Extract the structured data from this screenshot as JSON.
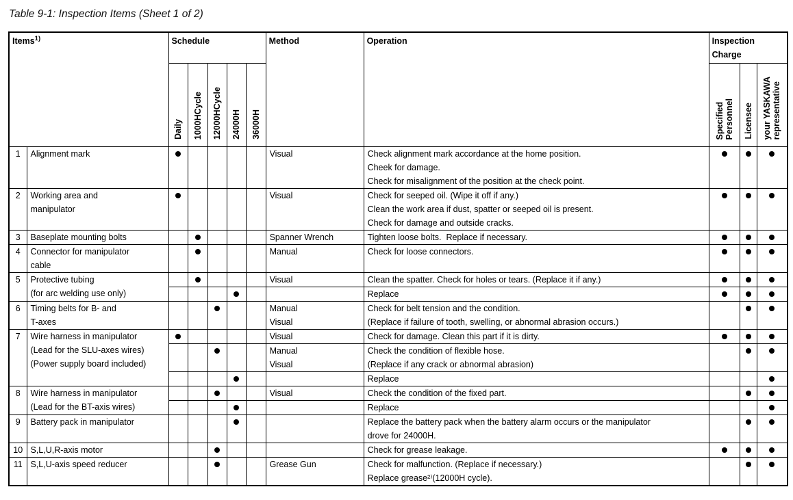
{
  "title": "Table 9-1: Inspection Items (Sheet 1 of 2)",
  "header": {
    "items_label": "Items",
    "items_note": "1)",
    "schedule_label": "Schedule",
    "schedule_cols": [
      "Daily",
      "1000HCycle",
      "12000HCycle",
      "24000H",
      "36000H"
    ],
    "method_label": "Method",
    "operation_label": "Operation",
    "charge_label": "Inspection\nCharge",
    "charge_cols": [
      "Specified\nPersonnel",
      "Licensee",
      "your YASKAWA\nrepresentative"
    ]
  },
  "rows": [
    {
      "num": "1",
      "name": "Alignment mark",
      "subrows": [
        {
          "schedule": "Daily",
          "method": "Visual",
          "operation": "Check alignment mark accordance at the home position.\nCheek for damage.\nCheck for misalignment of the position at the check point.",
          "charges": [
            1,
            1,
            1
          ]
        }
      ]
    },
    {
      "num": "2",
      "name": "Working area and\nmanipulator",
      "subrows": [
        {
          "schedule": "Daily",
          "method": "Visual",
          "operation": "Check for seeped oil. (Wipe it off if any.)\nClean the work area if dust, spatter or seeped oil is present.\nCheck for damage and outside cracks.",
          "charges": [
            1,
            1,
            1
          ]
        }
      ]
    },
    {
      "num": "3",
      "name": "Baseplate mounting bolts",
      "subrows": [
        {
          "schedule": "1000HCycle",
          "method": "Spanner Wrench",
          "operation": "Tighten loose bolts.  Replace if necessary.",
          "charges": [
            1,
            1,
            1
          ]
        }
      ]
    },
    {
      "num": "4",
      "name": "Connector for manipulator\ncable",
      "subrows": [
        {
          "schedule": "1000HCycle",
          "method": "Manual",
          "operation": "Check for loose connectors.",
          "charges": [
            1,
            1,
            1
          ]
        }
      ]
    },
    {
      "num": "5",
      "name": "Protective tubing\n(for arc welding use only)",
      "subrows": [
        {
          "schedule": "1000HCycle",
          "method": "Visual",
          "operation": "Clean the spatter. Check for holes or tears. (Replace it if any.)",
          "charges": [
            1,
            1,
            1
          ]
        },
        {
          "schedule": "24000H",
          "method": "",
          "operation": "Replace",
          "charges": [
            1,
            1,
            1
          ]
        }
      ]
    },
    {
      "num": "6",
      "name": "Timing belts for B- and\nT-axes",
      "subrows": [
        {
          "schedule": "12000HCycle",
          "method": "Manual\nVisual",
          "operation": "Check for belt tension and the condition.\n(Replace if failure of tooth, swelling, or abnormal abrasion occurs.)",
          "charges": [
            0,
            1,
            1
          ]
        }
      ]
    },
    {
      "num": "7",
      "name": "Wire harness in manipulator\n(Lead for the SLU-axes wires)\n(Power supply board included)",
      "subrows": [
        {
          "schedule": "Daily",
          "method": "Visual",
          "operation": "Check for damage. Clean this part if it is dirty.",
          "charges": [
            1,
            1,
            1
          ]
        },
        {
          "schedule": "12000HCycle",
          "method": "Manual\nVisual",
          "operation": "Check the condition of flexible hose.\n(Replace if any crack or abnormal abrasion)",
          "charges": [
            0,
            1,
            1
          ]
        },
        {
          "schedule": "24000H",
          "method": "",
          "operation": "Replace",
          "charges": [
            0,
            0,
            1
          ]
        }
      ]
    },
    {
      "num": "8",
      "name": "Wire harness in manipulator\n(Lead for the BT-axis wires)",
      "subrows": [
        {
          "schedule": "12000HCycle",
          "method": "Visual",
          "operation": "Check the condition of the fixed part.",
          "charges": [
            0,
            1,
            1
          ]
        },
        {
          "schedule": "24000H",
          "method": "",
          "operation": "Replace",
          "charges": [
            0,
            0,
            1
          ]
        }
      ]
    },
    {
      "num": "9",
      "name": "Battery pack in manipulator",
      "subrows": [
        {
          "schedule": "24000H",
          "method": "",
          "operation": "Replace the battery pack when the battery alarm occurs or the manipulator\ndrove for 24000H.",
          "charges": [
            0,
            1,
            1
          ]
        }
      ]
    },
    {
      "num": "10",
      "name": "S,L,U,R-axis motor",
      "subrows": [
        {
          "schedule": "12000HCycle",
          "method": "",
          "operation": "Check for grease leakage.",
          "charges": [
            1,
            1,
            1
          ]
        }
      ]
    },
    {
      "num": "11",
      "name": "S,L,U-axis speed reducer",
      "subrows": [
        {
          "schedule": "12000HCycle",
          "method": "Grease Gun",
          "operation": "Check for malfunction. (Replace if necessary.)\nReplace grease²⁾(12000H cycle).",
          "charges": [
            0,
            1,
            1
          ]
        }
      ]
    }
  ]
}
